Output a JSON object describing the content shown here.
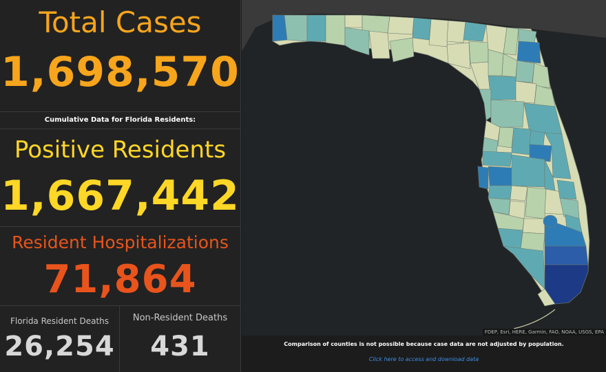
{
  "left_panel": {
    "total_cases": {
      "title": "Total Cases",
      "value": "1,698,570",
      "color": "#f7a51c"
    },
    "cumulative_note": "Cumulative Data for Florida Residents:",
    "positive_residents": {
      "title": "Positive Residents",
      "value": "1,667,442",
      "color": "#ffd726"
    },
    "hospitalizations": {
      "title": "Resident Hospitalizations",
      "value": "71,864",
      "color": "#e8541c"
    },
    "resident_deaths": {
      "title": "Florida Resident Deaths",
      "value": "26,254"
    },
    "nonresident_deaths": {
      "title": "Non-Resident Deaths",
      "value": "431"
    }
  },
  "map": {
    "attribution": "FDEP, Esri, HERE, Garmin, FAO, NOAA, USGS, EPA",
    "colors": {
      "background": "#212426",
      "land": "#3a3a3a",
      "county_light": "#d8dcb4",
      "county_mid": "#8ec0b0",
      "county_dark": "#2e7cb6",
      "county_darkest": "#1d3a86"
    }
  },
  "footer": {
    "note": "Comparison of counties is not possible because case data are not adjusted by population.",
    "link": "Click here to access and download data"
  }
}
